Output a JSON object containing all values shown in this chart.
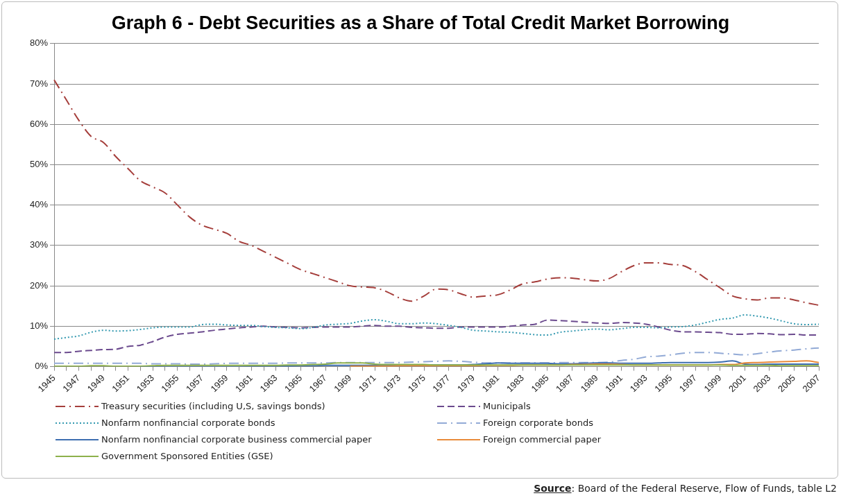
{
  "chart_data": {
    "type": "line",
    "title": "Graph 6 - Debt Securities as a Share of Total Credit Market Borrowing",
    "categories": [
      "1945",
      null,
      "1947",
      null,
      "1949",
      null,
      "1951",
      null,
      "1953",
      null,
      "1955",
      null,
      "1957",
      null,
      "1959",
      null,
      "1961",
      null,
      "1963",
      null,
      "1965",
      null,
      "1967",
      null,
      "1969",
      null,
      "1971",
      null,
      "1973",
      null,
      "1975",
      null,
      "1977",
      null,
      "1979",
      null,
      "1981",
      null,
      "1983",
      null,
      "1985",
      null,
      "1987",
      null,
      "1989",
      null,
      "1991",
      null,
      "1993",
      null,
      "1995",
      null,
      "1997",
      null,
      "1999",
      null,
      "2001",
      null,
      "2003",
      null,
      "2005",
      null,
      "2007"
    ],
    "ylim": [
      0,
      80
    ],
    "yticks": [
      {
        "value": 0,
        "label": "0%"
      },
      {
        "value": 10,
        "label": "10%"
      },
      {
        "value": 20,
        "label": "20%"
      },
      {
        "value": 30,
        "label": "30%"
      },
      {
        "value": 40,
        "label": "40%"
      },
      {
        "value": 50,
        "label": "50%"
      },
      {
        "value": 60,
        "label": "60%"
      },
      {
        "value": 70,
        "label": "70%"
      },
      {
        "value": 80,
        "label": "80%"
      }
    ],
    "grid": "y",
    "legend": "bottom",
    "marker": "none",
    "annotations": [
      "Source: Board of the Federal Reserve, Flow of Funds, table L2"
    ],
    "series": [
      {
        "name": "Treasury securities (including U,S, savings bonds)",
        "color": "#a53e3b",
        "line_style": "dashdot",
        "values": [
          71,
          66,
          61,
          57,
          55.5,
          52,
          49,
          46,
          44.5,
          43,
          40,
          37,
          35,
          34,
          33,
          31,
          30,
          28.5,
          27,
          25.5,
          24,
          23,
          22,
          21,
          20,
          19.7,
          19.5,
          18.5,
          17,
          16.2,
          17.5,
          19.2,
          19,
          18,
          17.2,
          17.5,
          17.8,
          19,
          20.5,
          21,
          21.7,
          22,
          21.9,
          21.5,
          21.2,
          21.8,
          23.5,
          25,
          25.7,
          25.7,
          25.3,
          25,
          23.5,
          21.5,
          19.5,
          17.5,
          16.8,
          16.5,
          17,
          17,
          16.5,
          15.8,
          15.2
        ]
      },
      {
        "name": "Municipals",
        "color": "#6b4a8e",
        "line_style": "dashed",
        "values": [
          3.5,
          3.5,
          3.8,
          4,
          4.2,
          4.3,
          5,
          5.3,
          6.2,
          7.3,
          8,
          8.3,
          8.6,
          9,
          9.3,
          9.6,
          9.8,
          10,
          9.8,
          9.7,
          9.6,
          9.7,
          9.8,
          9.8,
          9.8,
          10,
          10.2,
          10,
          10,
          9.7,
          9.6,
          9.5,
          9.5,
          9.8,
          9.8,
          9.8,
          9.8,
          10,
          10.3,
          10.5,
          11.5,
          11.4,
          11.2,
          11,
          10.8,
          10.7,
          10.9,
          10.8,
          10.5,
          9.8,
          9,
          8.6,
          8.6,
          8.5,
          8.4,
          8,
          8,
          8.2,
          8.1,
          7.9,
          8,
          7.8,
          7.8
        ]
      },
      {
        "name": "Nonfarm nonfinancial corporate bonds",
        "color": "#3399b0",
        "line_style": "dotted",
        "values": [
          6.8,
          7.2,
          7.6,
          8.5,
          9,
          8.8,
          8.9,
          9.2,
          9.6,
          9.8,
          9.8,
          9.8,
          10.4,
          10.5,
          10.3,
          10.2,
          10.2,
          9.9,
          9.7,
          9.6,
          9.4,
          9.7,
          10.3,
          10.5,
          10.7,
          11.3,
          11.6,
          11.2,
          10.6,
          10.6,
          10.8,
          10.6,
          10.2,
          9.7,
          9,
          8.8,
          8.6,
          8.5,
          8.2,
          7.9,
          7.8,
          8.5,
          8.8,
          9.1,
          9.3,
          9.1,
          9.4,
          9.7,
          9.7,
          9.6,
          9.8,
          9.9,
          10.3,
          11,
          11.7,
          12,
          12.8,
          12.5,
          12,
          11.3,
          10.6,
          10.4,
          10.5
        ]
      },
      {
        "name": "Foreign corporate bonds",
        "color": "#92aad6",
        "line_style": "dashdot",
        "values": [
          0.8,
          0.8,
          0.8,
          0.8,
          0.8,
          0.8,
          0.8,
          0.8,
          0.7,
          0.7,
          0.7,
          0.6,
          0.6,
          0.7,
          0.8,
          0.8,
          0.8,
          0.8,
          0.8,
          0.9,
          0.9,
          0.9,
          0.9,
          1,
          1,
          1,
          1,
          1,
          1,
          1.1,
          1.2,
          1.3,
          1.4,
          1.3,
          1.1,
          0.9,
          0.9,
          0.9,
          0.9,
          0.9,
          0.9,
          1,
          1,
          1,
          1,
          1.1,
          1.5,
          1.8,
          2.4,
          2.6,
          2.9,
          3.3,
          3.5,
          3.5,
          3.3,
          3.1,
          2.9,
          3.2,
          3.6,
          3.9,
          4.1,
          4.4,
          4.6
        ]
      },
      {
        "name": "Nonfarm nonfinancial corporate business commercial paper",
        "color": "#3d6eb0",
        "line_style": "solid",
        "values": [
          null,
          null,
          null,
          null,
          null,
          null,
          null,
          0,
          0,
          0,
          0,
          0,
          0,
          0,
          0,
          0,
          0.1,
          0.1,
          0.1,
          0.1,
          0.2,
          0.2,
          0.3,
          0.3,
          0.3,
          0.3,
          0.3,
          0.3,
          0.3,
          0.4,
          0.4,
          0.4,
          0.4,
          0.4,
          0.5,
          0.7,
          0.9,
          0.8,
          0.8,
          0.8,
          0.8,
          0.7,
          0.7,
          0.8,
          0.9,
          0.9,
          0.8,
          0.8,
          0.8,
          0.9,
          1,
          1,
          1,
          1,
          1.1,
          1.4,
          0.6,
          0.5,
          0.6,
          0.6,
          0.6,
          0.6,
          0.6
        ]
      },
      {
        "name": "Foreign commercial paper",
        "color": "#e98b3a",
        "line_style": "solid",
        "values": [
          null,
          null,
          null,
          null,
          null,
          null,
          null,
          null,
          null,
          null,
          null,
          null,
          null,
          null,
          null,
          null,
          null,
          null,
          null,
          null,
          null,
          null,
          null,
          null,
          0.1,
          0.1,
          0.1,
          0.1,
          0.2,
          0.2,
          0.2,
          0.2,
          0.2,
          0.2,
          0.2,
          0.3,
          0.3,
          0.3,
          0.4,
          0.4,
          0.4,
          0.4,
          0.5,
          0.5,
          0.6,
          0.6,
          0.5,
          0.4,
          0.4,
          0.4,
          0.4,
          0.4,
          0.4,
          0.4,
          0.5,
          0.5,
          0.9,
          1,
          1.1,
          1.2,
          1.3,
          1.4,
          1
        ]
      },
      {
        "name": "Government Sponsored Entities  (GSE)",
        "color": "#8db04b",
        "line_style": "solid",
        "values": [
          0.1,
          0.1,
          0.1,
          0.2,
          0.2,
          0.1,
          0.1,
          0.1,
          0.2,
          0.3,
          0.3,
          0.3,
          0.3,
          0.3,
          0.3,
          0.3,
          0.3,
          0.3,
          0.3,
          0.4,
          0.4,
          0.5,
          0.6,
          0.9,
          0.9,
          0.9,
          0.6,
          0.5,
          0.5,
          0.5,
          0.5,
          0.4,
          0.4,
          0.4,
          0.4,
          0.4,
          0.4,
          0.4,
          0.4,
          0.4,
          0.4,
          0.4,
          0.4,
          0.4,
          0.4,
          0.4,
          0.4,
          0.4,
          0.4,
          0.4,
          0.4,
          0.4,
          0.4,
          0.4,
          0.4,
          0.3,
          0.3,
          0.3,
          0.3,
          0.2,
          0.2,
          0.2,
          0.2
        ]
      }
    ]
  }
}
